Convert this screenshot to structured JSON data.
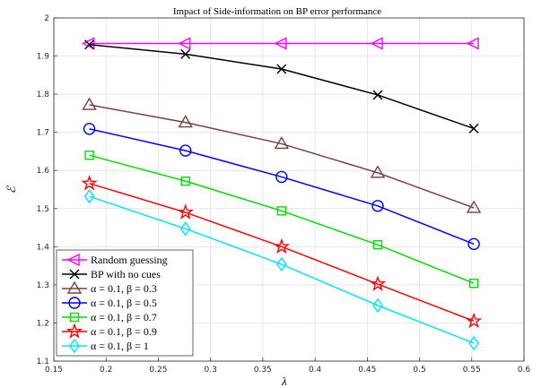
{
  "chart_data": {
    "type": "line",
    "title": "Impact of Side-information on BP error performance",
    "xlabel": "λ",
    "ylabel": "ℰ",
    "xlim": [
      0.15,
      0.6
    ],
    "ylim": [
      1.1,
      2.0
    ],
    "xticks": [
      "0.15",
      "0.2",
      "0.25",
      "0.3",
      "0.35",
      "0.4",
      "0.45",
      "0.5",
      "0.55",
      "0.6"
    ],
    "yticks": [
      "1.1",
      "1.2",
      "1.3",
      "1.4",
      "1.5",
      "1.6",
      "1.7",
      "1.8",
      "1.9",
      "2"
    ],
    "grid": true,
    "legend_position": "bottom-left",
    "x": [
      0.184,
      0.276,
      0.368,
      0.46,
      0.552
    ],
    "series": [
      {
        "name": "Random guessing",
        "color": "#ff00ff",
        "marker": "triangle-left",
        "values": [
          1.933,
          1.933,
          1.933,
          1.933,
          1.933
        ]
      },
      {
        "name": "BP with no cues",
        "color": "#000000",
        "marker": "x",
        "values": [
          1.93,
          1.905,
          1.866,
          1.798,
          1.71
        ]
      },
      {
        "name": "α = 0.1, β = 0.3",
        "color": "#7b3f3f",
        "marker": "triangle-up",
        "values": [
          1.772,
          1.726,
          1.67,
          1.594,
          1.502
        ]
      },
      {
        "name": "α = 0.1, β = 0.5",
        "color": "#0000ff",
        "marker": "circle",
        "values": [
          1.709,
          1.652,
          1.583,
          1.507,
          1.407
        ]
      },
      {
        "name": "α = 0.1, β = 0.7",
        "color": "#00dd00",
        "marker": "square",
        "values": [
          1.64,
          1.572,
          1.494,
          1.405,
          1.304
        ]
      },
      {
        "name": "α = 0.1, β = 0.9",
        "color": "#ff0000",
        "marker": "star",
        "values": [
          1.566,
          1.49,
          1.4,
          1.302,
          1.205
        ]
      },
      {
        "name": "α = 0.1, β = 1",
        "color": "#00e5ff",
        "marker": "diamond",
        "values": [
          1.532,
          1.447,
          1.354,
          1.246,
          1.147
        ]
      }
    ]
  }
}
